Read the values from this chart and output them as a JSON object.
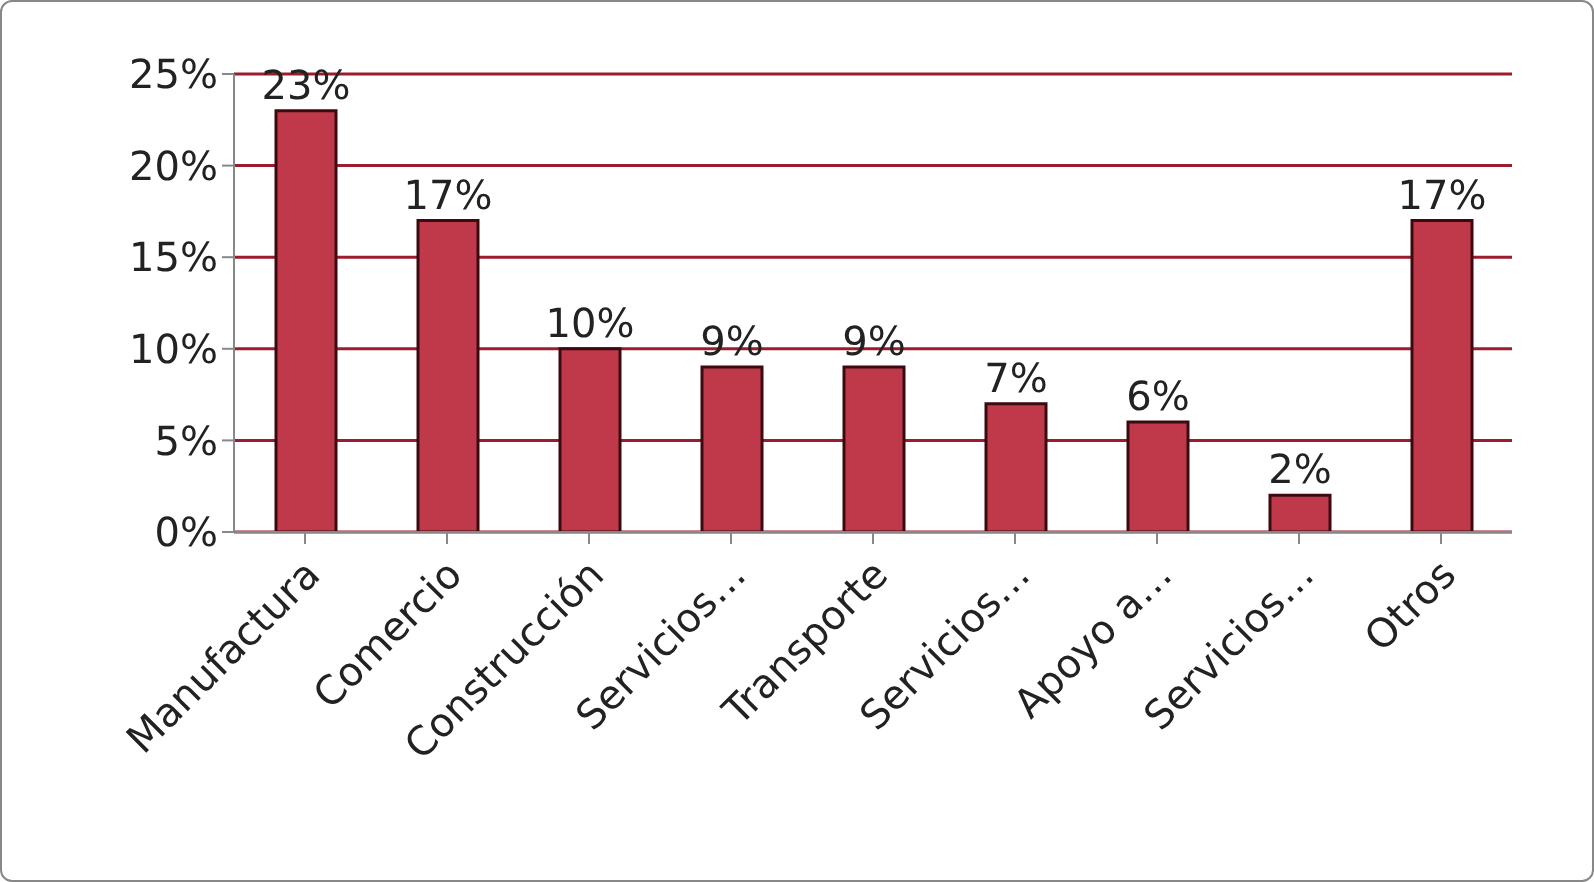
{
  "chart_data": {
    "type": "bar",
    "categories": [
      "Manufactura",
      "Comercio",
      "Construcción",
      "Servicios…",
      "Transporte",
      "Servicios…",
      "Apoyo a…",
      "Servicios…",
      "Otros"
    ],
    "values": [
      23,
      17,
      10,
      9,
      9,
      7,
      6,
      2,
      17
    ],
    "value_labels": [
      "23%",
      "17%",
      "10%",
      "9%",
      "9%",
      "7%",
      "6%",
      "2%",
      "17%"
    ],
    "color": "#c0394a",
    "ylim": [
      0,
      25
    ],
    "yticks": [
      {
        "value": 0,
        "label": "0%"
      },
      {
        "value": 5,
        "label": "5%"
      },
      {
        "value": 10,
        "label": "10%"
      },
      {
        "value": 15,
        "label": "15%"
      },
      {
        "value": 20,
        "label": "20%"
      },
      {
        "value": 25,
        "label": "25%"
      }
    ],
    "grid": "y",
    "legend": false
  }
}
